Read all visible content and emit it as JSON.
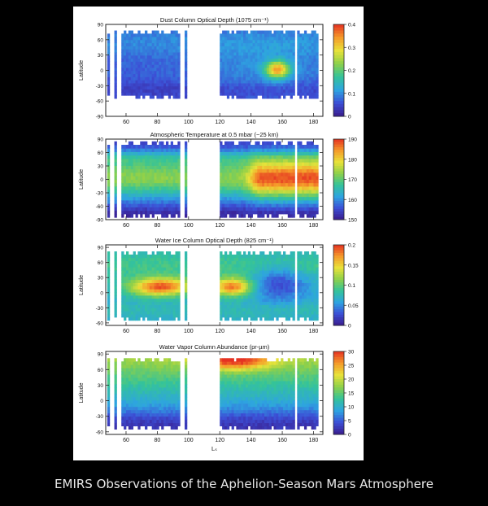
{
  "caption": "EMIRS Observations of the Aphelion-Season Mars Atmosphere",
  "colormap": [
    "#3a1c8c",
    "#3c4fd6",
    "#2ea4e0",
    "#34c39a",
    "#8ed04a",
    "#e8e23a",
    "#f59a2a",
    "#e53222"
  ],
  "chart_data": [
    {
      "type": "heatmap",
      "title": "Dust Column Optical Depth (1075 cm⁻¹)",
      "xlabel": "",
      "ylabel": "Latitude",
      "xlim": [
        47,
        186
      ],
      "ylim": [
        -90,
        90
      ],
      "xticks": [
        60,
        80,
        100,
        120,
        140,
        160,
        180
      ],
      "yticks": [
        90,
        60,
        30,
        0,
        -30,
        -60,
        -90
      ],
      "colorbar": {
        "min": 0,
        "max": 0.4,
        "ticks": [
          0.4,
          0.3,
          0.2,
          0.1,
          0
        ]
      },
      "data_gaps_ls": [
        [
          50,
          52
        ],
        [
          53.5,
          57
        ],
        [
          95,
          97
        ],
        [
          99,
          120
        ],
        [
          167.5,
          169.5
        ]
      ],
      "coverage_lat": [
        -55,
        78
      ],
      "features": [
        {
          "ls": 157,
          "lat": 2,
          "value": 0.33,
          "desc": "dust maximum"
        }
      ],
      "background_value": 0.08
    },
    {
      "type": "heatmap",
      "title": "Atmospheric Temperature at 0.5 mbar (~25 km)",
      "xlabel": "",
      "ylabel": "Latitude",
      "xlim": [
        47,
        186
      ],
      "ylim": [
        -90,
        90
      ],
      "xticks": [
        60,
        80,
        100,
        120,
        140,
        160,
        180
      ],
      "yticks": [
        90,
        60,
        30,
        0,
        -30,
        -60,
        -90
      ],
      "colorbar": {
        "min": 150,
        "max": 190,
        "ticks": [
          190,
          180,
          170,
          160,
          150
        ]
      },
      "data_gaps_ls": [
        [
          50,
          52
        ],
        [
          53.5,
          57
        ],
        [
          95,
          97
        ],
        [
          99,
          120
        ],
        [
          167.5,
          169.5
        ]
      ],
      "coverage_lat": [
        -85,
        85
      ],
      "features": [
        {
          "ls": 160,
          "lat": 0,
          "value": 189,
          "desc": "warm equatorial maximum"
        }
      ]
    },
    {
      "type": "heatmap",
      "title": "Water Ice Column Optical Depth (825 cm⁻¹)",
      "xlabel": "",
      "ylabel": "Latitude",
      "xlim": [
        47,
        186
      ],
      "ylim": [
        -65,
        95
      ],
      "xticks": [
        60,
        80,
        100,
        120,
        140,
        160,
        180
      ],
      "yticks": [
        90,
        60,
        30,
        0,
        -30,
        -60
      ],
      "colorbar": {
        "min": 0,
        "max": 0.2,
        "ticks": [
          0.2,
          0.15,
          0.1,
          0.05,
          0
        ]
      },
      "data_gaps_ls": [
        [
          50,
          52
        ],
        [
          53.5,
          57
        ],
        [
          95,
          97
        ],
        [
          99,
          120
        ],
        [
          167.5,
          169.5
        ]
      ],
      "coverage_lat": [
        -55,
        82
      ],
      "features": [
        {
          "ls": 82,
          "lat": 10,
          "value": 0.2,
          "desc": "aphelion cloud belt"
        },
        {
          "ls": 126,
          "lat": 10,
          "value": 0.19,
          "desc": "aphelion cloud belt"
        }
      ]
    },
    {
      "type": "heatmap",
      "title": "Water Vapor Column Abundance (pr-µm)",
      "xlabel": "Lₛ",
      "ylabel": "Latitude",
      "xlim": [
        47,
        186
      ],
      "ylim": [
        -65,
        95
      ],
      "xticks": [
        60,
        80,
        100,
        120,
        140,
        160,
        180
      ],
      "yticks": [
        90,
        60,
        30,
        0,
        -30,
        -60
      ],
      "colorbar": {
        "min": 0,
        "max": 30,
        "ticks": [
          30,
          25,
          20,
          15,
          10,
          5,
          0
        ]
      },
      "data_gaps_ls": [
        [
          50,
          52
        ],
        [
          53.5,
          57
        ],
        [
          95,
          97
        ],
        [
          99,
          120
        ],
        [
          167.5,
          169.5
        ]
      ],
      "coverage_lat": [
        -55,
        82
      ],
      "features": [
        {
          "ls": 130,
          "lat": 75,
          "value": 30,
          "desc": "north polar maximum"
        }
      ]
    }
  ]
}
